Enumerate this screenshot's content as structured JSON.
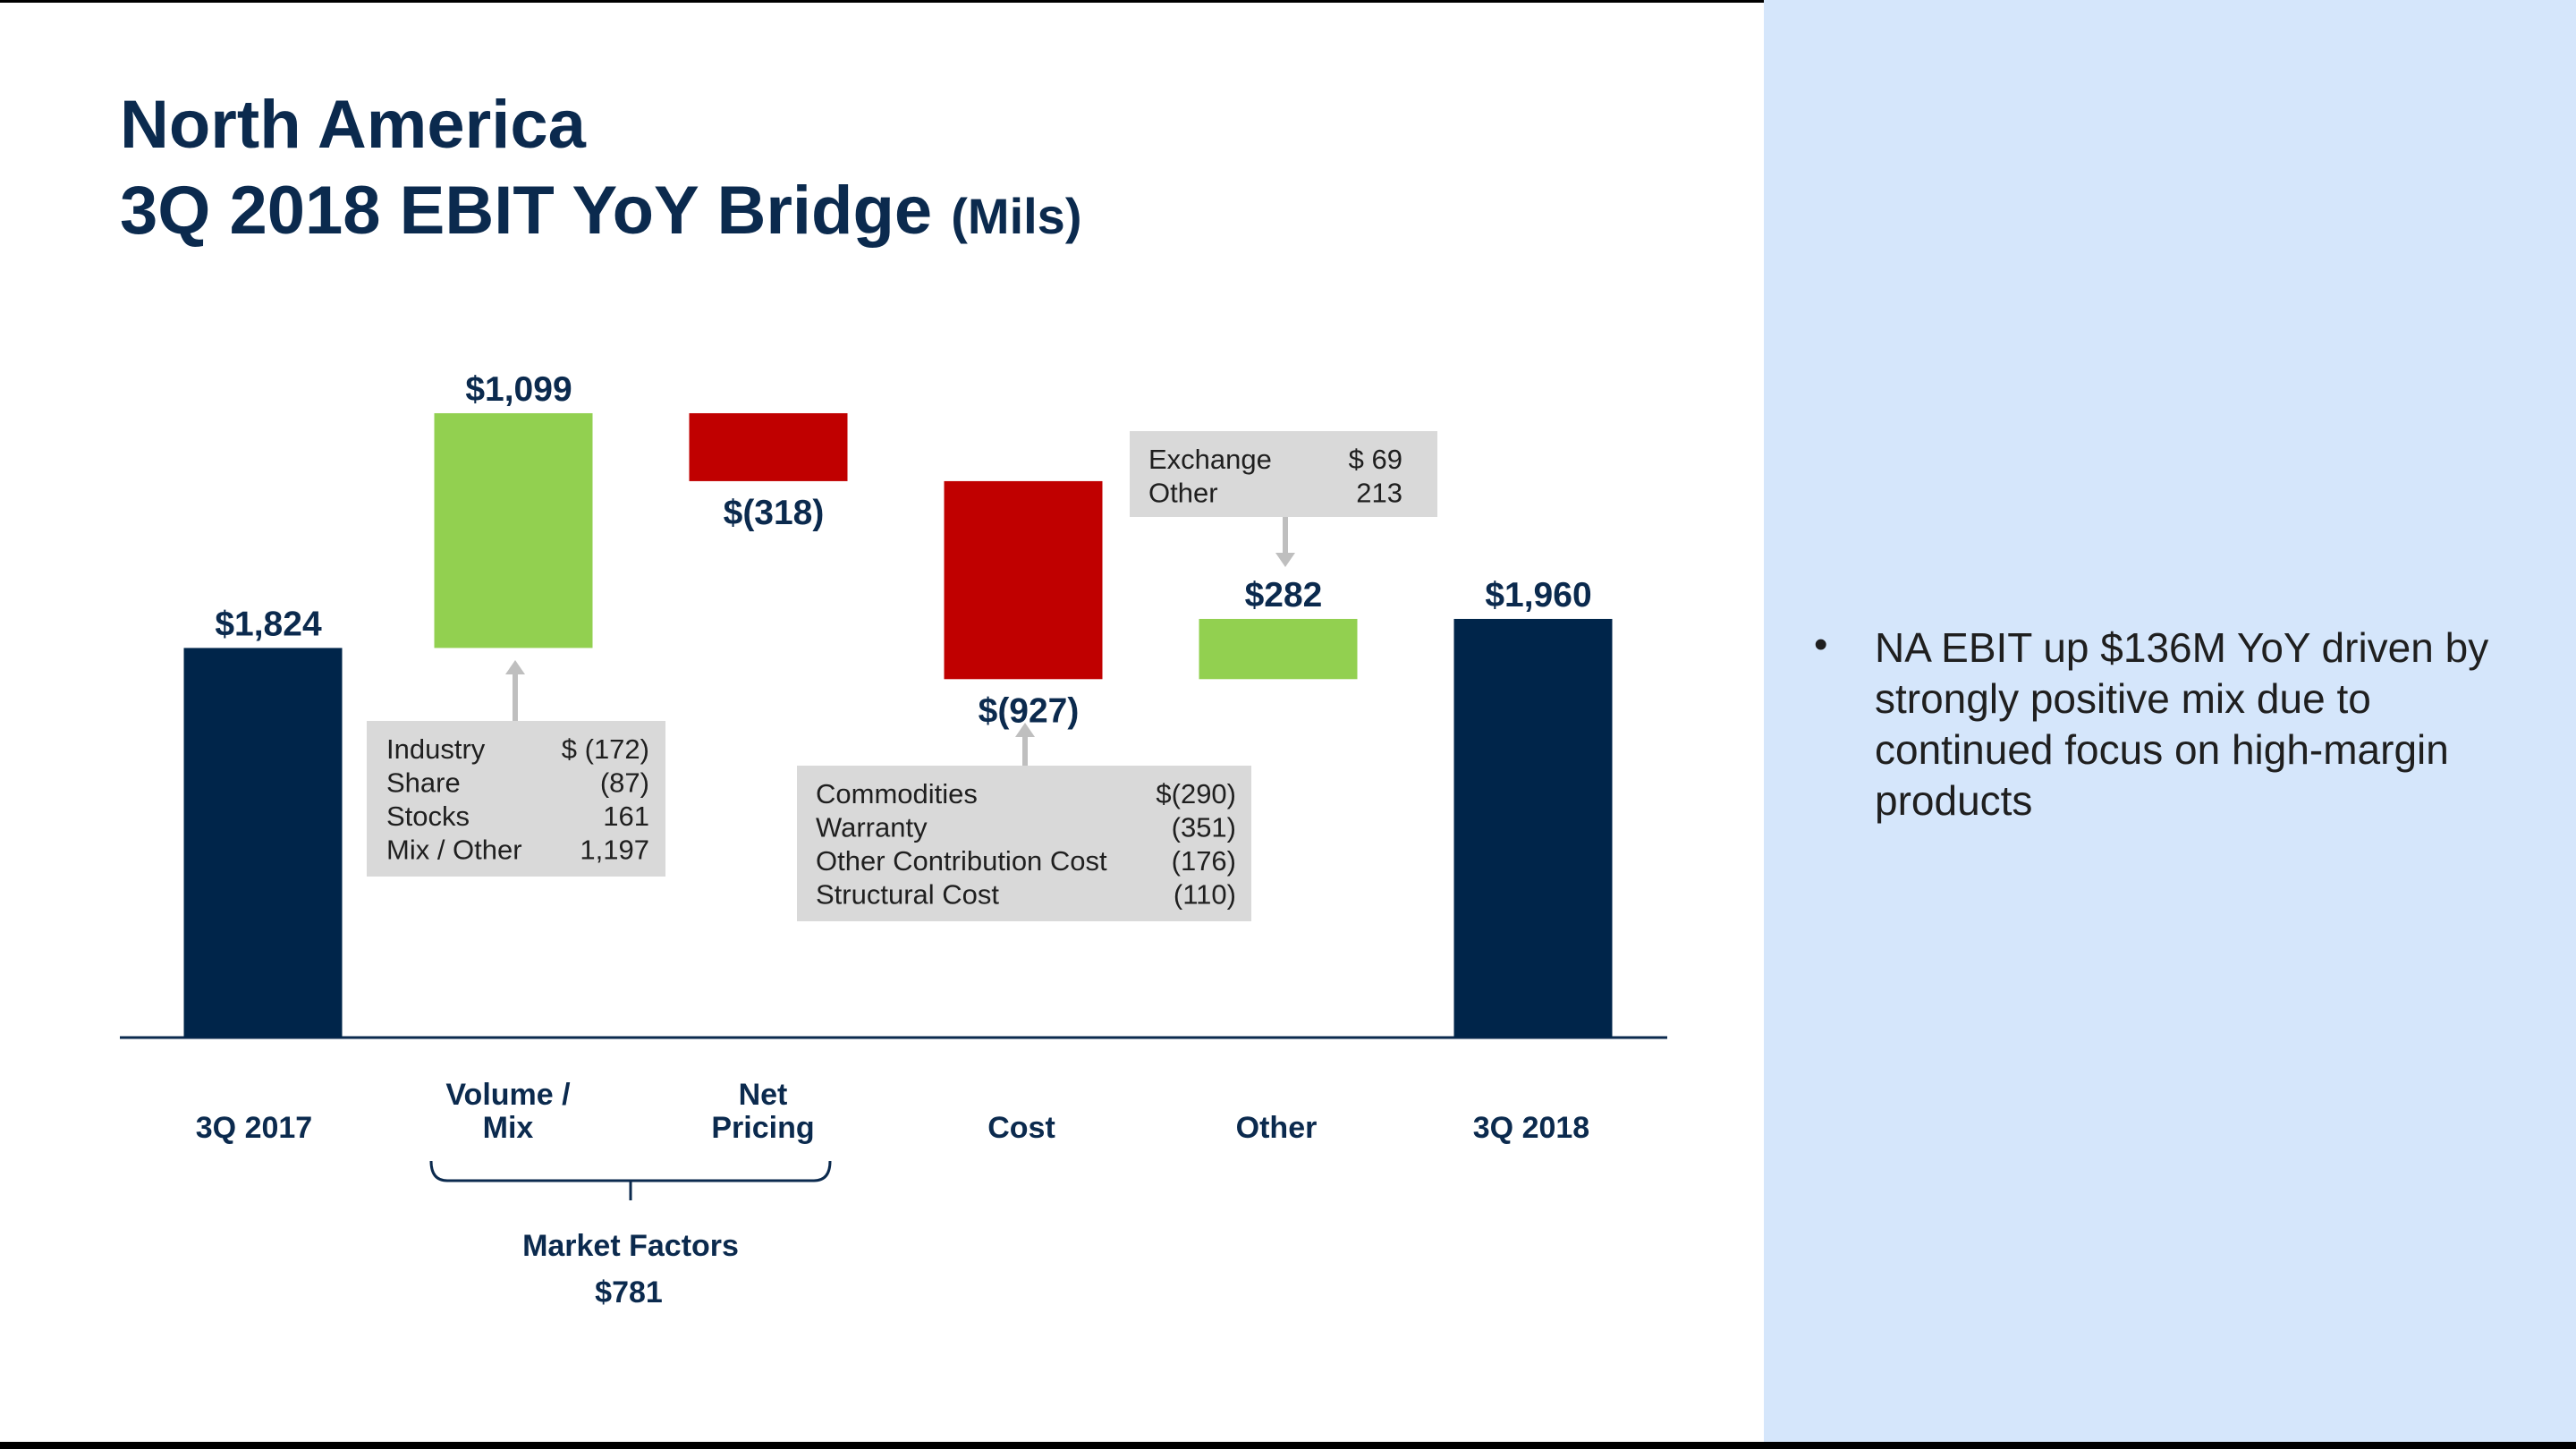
{
  "title": {
    "line1": "North America",
    "line2": "3Q 2018 EBIT YoY Bridge",
    "unit": "(Mils)"
  },
  "colors": {
    "total": "#00254a",
    "increase": "#92d050",
    "decrease": "#c00000",
    "title": "#0b2a4e",
    "callout_bg": "#d9d9d9",
    "panel_bg": "#d5e6fb"
  },
  "chart_data": {
    "type": "bar",
    "subtype": "waterfall",
    "categories": [
      "3Q 2017",
      "Volume / Mix",
      "Net Pricing",
      "Cost",
      "Other",
      "3Q 2018"
    ],
    "category_lines": [
      [
        "3Q 2017"
      ],
      [
        "Volume /",
        "Mix"
      ],
      [
        "Net",
        "Pricing"
      ],
      [
        "Cost"
      ],
      [
        "Other"
      ],
      [
        "3Q 2018"
      ]
    ],
    "values": [
      1824,
      1099,
      -318,
      -927,
      282,
      1960
    ],
    "kinds": [
      "total",
      "increase",
      "decrease",
      "decrease",
      "increase",
      "total"
    ],
    "data_labels": [
      "$1,824",
      "$1,099",
      "$(318)",
      "$(927)",
      "$282",
      "$1,960"
    ],
    "ylim": [
      0,
      3250
    ],
    "grid": false,
    "legend": "none",
    "bracket": {
      "label": "Market Factors",
      "value": "$781",
      "spans": [
        "Volume / Mix",
        "Net Pricing"
      ]
    },
    "callouts": [
      {
        "for": "Volume / Mix",
        "rows": [
          {
            "label": "Industry",
            "value": "$  (172)"
          },
          {
            "label": "Share",
            "value": "(87)"
          },
          {
            "label": "Stocks",
            "value": "161"
          },
          {
            "label": "Mix / Other",
            "value": "1,197"
          }
        ]
      },
      {
        "for": "Cost",
        "rows": [
          {
            "label": "Commodities",
            "value": "$(290)"
          },
          {
            "label": "Warranty",
            "value": "(351)"
          },
          {
            "label": "Other Contribution Cost",
            "value": "(176)"
          },
          {
            "label": "Structural Cost",
            "value": "(110)"
          }
        ]
      },
      {
        "for": "Other",
        "rows": [
          {
            "label": "Exchange",
            "value": "$  69"
          },
          {
            "label": "Other",
            "value": "213"
          }
        ]
      }
    ]
  },
  "sidebar": {
    "bullets": [
      "NA EBIT up $136M YoY driven by strongly positive mix due to continued focus on high-margin products"
    ]
  }
}
